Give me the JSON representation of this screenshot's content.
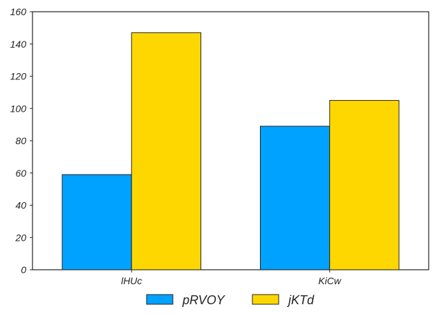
{
  "chart_data": {
    "type": "bar",
    "categories": [
      "lHUc",
      "KiCw"
    ],
    "series": [
      {
        "name": "pRVOY",
        "values": [
          59,
          89
        ],
        "color": "#00a2ff"
      },
      {
        "name": "jKTd",
        "values": [
          147,
          105
        ],
        "color": "#ffd700"
      }
    ],
    "title": "",
    "xlabel": "",
    "ylabel": "",
    "ylim": [
      0,
      160
    ],
    "yticks": [
      0,
      20,
      40,
      60,
      80,
      100,
      120,
      140,
      160
    ],
    "grid": false,
    "legend_position": "bottom-center"
  }
}
